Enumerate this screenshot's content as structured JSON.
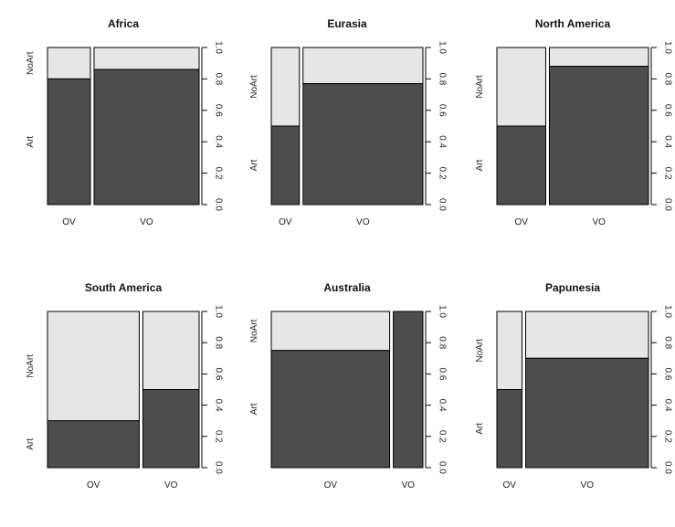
{
  "chart_data": [
    {
      "type": "spineplot",
      "title": "Africa",
      "categories": [
        "OV",
        "VO"
      ],
      "category_widths": [
        0.29,
        0.71
      ],
      "series": [
        {
          "name": "Art",
          "values": [
            0.8,
            0.86
          ]
        },
        {
          "name": "NoArt",
          "values": [
            0.2,
            0.14
          ]
        }
      ],
      "yticks": [
        "0.0",
        "0.2",
        "0.4",
        "0.6",
        "0.8",
        "1.0"
      ],
      "ylim": [
        0,
        1
      ],
      "colors": {
        "Art": "#4d4d4d",
        "NoArt": "#e6e6e6"
      }
    },
    {
      "type": "spineplot",
      "title": "Eurasia",
      "categories": [
        "OV",
        "VO"
      ],
      "category_widths": [
        0.19,
        0.81
      ],
      "series": [
        {
          "name": "Art",
          "values": [
            0.5,
            0.77
          ]
        },
        {
          "name": "NoArt",
          "values": [
            0.5,
            0.23
          ]
        }
      ],
      "yticks": [
        "0.0",
        "0.2",
        "0.4",
        "0.6",
        "0.8",
        "1.0"
      ],
      "ylim": [
        0,
        1
      ],
      "colors": {
        "Art": "#4d4d4d",
        "NoArt": "#e6e6e6"
      }
    },
    {
      "type": "spineplot",
      "title": "North America",
      "categories": [
        "OV",
        "VO"
      ],
      "category_widths": [
        0.33,
        0.67
      ],
      "series": [
        {
          "name": "Art",
          "values": [
            0.5,
            0.88
          ]
        },
        {
          "name": "NoArt",
          "values": [
            0.5,
            0.12
          ]
        }
      ],
      "yticks": [
        "0.0",
        "0.2",
        "0.4",
        "0.6",
        "0.8",
        "1.0"
      ],
      "ylim": [
        0,
        1
      ],
      "colors": {
        "Art": "#4d4d4d",
        "NoArt": "#e6e6e6"
      }
    },
    {
      "type": "spineplot",
      "title": "South America",
      "categories": [
        "OV",
        "VO"
      ],
      "category_widths": [
        0.62,
        0.38
      ],
      "series": [
        {
          "name": "Art",
          "values": [
            0.3,
            0.5
          ]
        },
        {
          "name": "NoArt",
          "values": [
            0.7,
            0.5
          ]
        }
      ],
      "yticks": [
        "0.0",
        "0.2",
        "0.4",
        "0.6",
        "0.8",
        "1.0"
      ],
      "ylim": [
        0,
        1
      ],
      "colors": {
        "Art": "#4d4d4d",
        "NoArt": "#e6e6e6"
      }
    },
    {
      "type": "spineplot",
      "title": "Australia",
      "categories": [
        "OV",
        "VO"
      ],
      "category_widths": [
        0.8,
        0.2
      ],
      "series": [
        {
          "name": "Art",
          "values": [
            0.75,
            1.0
          ]
        },
        {
          "name": "NoArt",
          "values": [
            0.25,
            0.0
          ]
        }
      ],
      "yticks": [
        "0.0",
        "0.2",
        "0.4",
        "0.6",
        "0.8",
        "1.0"
      ],
      "ylim": [
        0,
        1
      ],
      "colors": {
        "Art": "#4d4d4d",
        "NoArt": "#e6e6e6"
      }
    },
    {
      "type": "spineplot",
      "title": "Papunesia",
      "categories": [
        "OV",
        "VO"
      ],
      "category_widths": [
        0.17,
        0.83
      ],
      "series": [
        {
          "name": "Art",
          "values": [
            0.5,
            0.7
          ]
        },
        {
          "name": "NoArt",
          "values": [
            0.5,
            0.3
          ]
        }
      ],
      "yticks": [
        "0.0",
        "0.2",
        "0.4",
        "0.6",
        "0.8",
        "1.0"
      ],
      "ylim": [
        0,
        1
      ],
      "colors": {
        "Art": "#4d4d4d",
        "NoArt": "#e6e6e6"
      }
    }
  ]
}
